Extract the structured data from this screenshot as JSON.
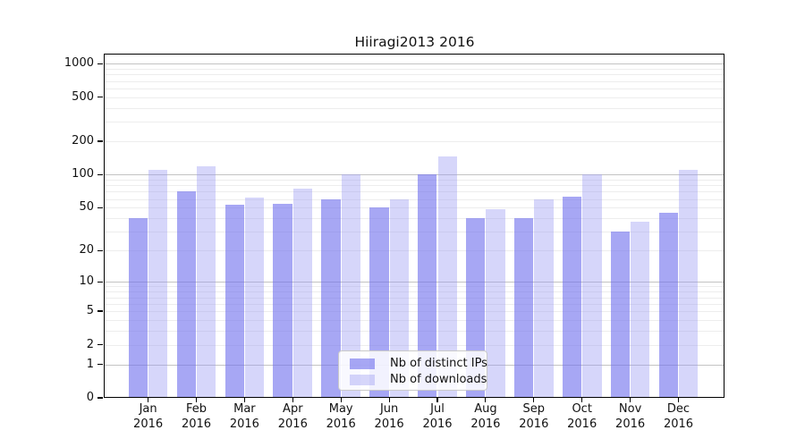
{
  "chart_data": {
    "type": "bar",
    "title": "Hiiragi2013 2016",
    "months": [
      "Jan",
      "Feb",
      "Mar",
      "Apr",
      "May",
      "Jun",
      "Jul",
      "Aug",
      "Sep",
      "Oct",
      "Nov",
      "Dec"
    ],
    "year": "2016",
    "series": [
      {
        "name": "Nb of distinct IPs",
        "color": "rgba(113,113,238,0.62)",
        "values": [
          40,
          70,
          53,
          54,
          60,
          50,
          100,
          40,
          40,
          63,
          30,
          45
        ]
      },
      {
        "name": "Nb of downloads",
        "color": "rgba(152,152,242,0.40)",
        "values": [
          110,
          118,
          62,
          75,
          100,
          60,
          145,
          48,
          60,
          100,
          37,
          110
        ]
      }
    ],
    "y_axis": {
      "scale": "log1p",
      "ticks": [
        1000,
        500,
        200,
        100,
        50,
        20,
        10,
        5,
        2,
        1,
        0
      ],
      "major_gridlines": [
        1,
        10,
        100,
        1000
      ],
      "minor_gridlines": [
        2,
        3,
        4,
        5,
        6,
        7,
        8,
        9,
        20,
        30,
        40,
        50,
        60,
        70,
        80,
        90,
        200,
        300,
        400,
        500,
        600,
        700,
        800,
        900
      ],
      "ylim": [
        0,
        1250
      ]
    },
    "xlabel": "",
    "ylabel": "",
    "grid": true,
    "legend_position": "lower-center"
  }
}
